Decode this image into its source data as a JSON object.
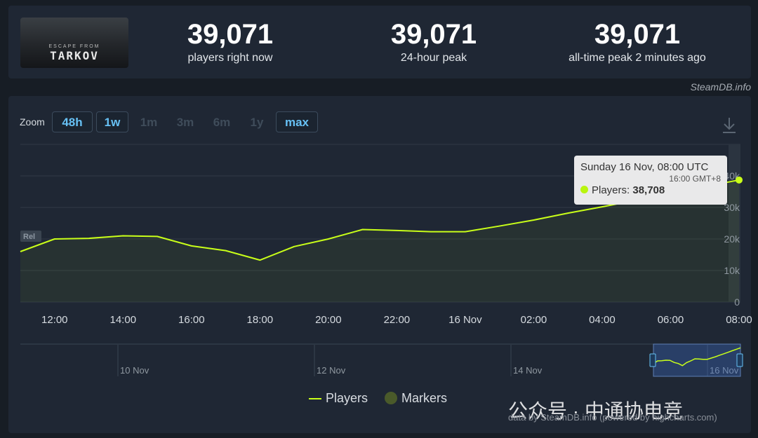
{
  "header": {
    "game_logo_text": "TARKOV",
    "game_logo_sub": "ESCAPE FROM",
    "stats": [
      {
        "value": "39,071",
        "label": "players right now"
      },
      {
        "value": "39,071",
        "label": "24-hour peak"
      },
      {
        "value": "39,071",
        "label": "all-time peak 2 minutes ago"
      }
    ],
    "credit": "SteamDB.info"
  },
  "zoom": {
    "label": "Zoom",
    "buttons": [
      {
        "label": "48h",
        "enabled": true
      },
      {
        "label": "1w",
        "enabled": true
      },
      {
        "label": "1m",
        "enabled": false
      },
      {
        "label": "3m",
        "enabled": false
      },
      {
        "label": "6m",
        "enabled": false
      },
      {
        "label": "1y",
        "enabled": false
      },
      {
        "label": "max",
        "enabled": true
      }
    ]
  },
  "tooltip": {
    "date": "Sunday 16 Nov, 08:00 UTC",
    "local": "16:00 GMT+8",
    "series_label": "Players:",
    "value": "38,708"
  },
  "legend": {
    "players": "Players",
    "markers": "Markers"
  },
  "watermark": "公众号 · 中通协电竞",
  "footer_credit": "data by SteamDB.info (powered by highcharts.com)",
  "colors": {
    "line": "#c9ff19",
    "accent": "#67c1f5",
    "marker": "#4a5a2a"
  },
  "chart_data": {
    "type": "line",
    "series": [
      {
        "name": "Players",
        "x": [
          "11:00",
          "12:00",
          "13:00",
          "14:00",
          "15:00",
          "16:00",
          "17:00",
          "18:00",
          "19:00",
          "20:00",
          "21:00",
          "22:00",
          "23:00",
          "16 Nov 00:00",
          "01:00",
          "02:00",
          "03:00",
          "04:00",
          "05:00",
          "06:00",
          "07:00",
          "08:00"
        ],
        "values": [
          16000,
          20000,
          20200,
          21000,
          20800,
          17800,
          16300,
          13300,
          17600,
          20000,
          23000,
          22700,
          22300,
          22300,
          24100,
          26000,
          28200,
          30200,
          32300,
          34500,
          36600,
          38708
        ]
      }
    ],
    "y_axis": {
      "ticks": [
        "0",
        "10k",
        "20k",
        "30k",
        "40k"
      ],
      "range": [
        0,
        40000
      ]
    },
    "x_ticks": [
      "12:00",
      "14:00",
      "16:00",
      "18:00",
      "20:00",
      "22:00",
      "16 Nov",
      "02:00",
      "04:00",
      "06:00",
      "08:00"
    ],
    "navigator": {
      "ticks": [
        "10 Nov",
        "12 Nov",
        "14 Nov",
        "16 Nov"
      ]
    },
    "annotation": "Rel",
    "grid": true,
    "legend_position": "bottom-center"
  }
}
